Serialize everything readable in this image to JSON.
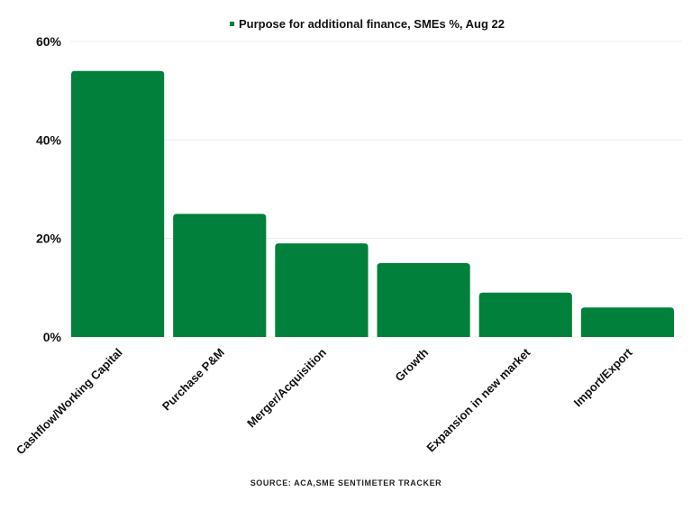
{
  "chart_data": {
    "type": "bar",
    "title": "",
    "xlabel": "",
    "ylabel": "",
    "categories": [
      "Cashflow/Working Capital",
      "Purchase P&M",
      "Merger/Acquisition",
      "Growth",
      "Expansion in new market",
      "Import/Export"
    ],
    "series": [
      {
        "name": "Purpose for additional finance, SMEs %, Aug 22",
        "values": [
          54,
          25,
          19,
          15,
          9,
          6
        ]
      }
    ],
    "ylim": [
      0,
      60
    ],
    "yticks": [
      0,
      20,
      40,
      60
    ],
    "ytick_labels": [
      "0%",
      "20%",
      "40%",
      "60%"
    ],
    "grid": true,
    "legend_position": "top-center",
    "bar_color": "#00803A"
  },
  "source_text": "SOURCE: ACA,SME SENTIMETER TRACKER"
}
